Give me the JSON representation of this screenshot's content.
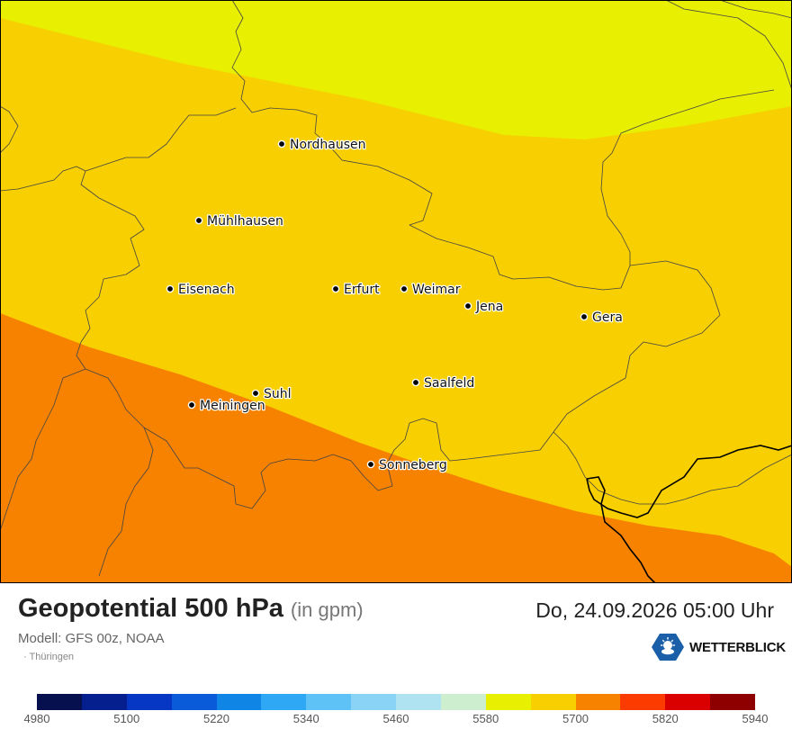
{
  "map": {
    "cities": [
      {
        "name": "Nordhausen"
      },
      {
        "name": "Mühlhausen"
      },
      {
        "name": "Eisenach"
      },
      {
        "name": "Erfurt"
      },
      {
        "name": "Weimar"
      },
      {
        "name": "Jena"
      },
      {
        "name": "Gera"
      },
      {
        "name": "Suhl"
      },
      {
        "name": "Meiningen"
      },
      {
        "name": "Saalfeld"
      },
      {
        "name": "Sonneberg"
      }
    ],
    "field_colors": {
      "band_5580": "#e8ef00",
      "band_5640": "#f8cf00",
      "band_5700": "#f78200"
    }
  },
  "header": {
    "title": "Geopotential 500 hPa",
    "unit": "(in gpm)",
    "datetime": "Do, 24.09.2026 05:00 Uhr",
    "model": "Modell: GFS 00z, NOAA",
    "region": "· Thüringen",
    "logo_text": "WETTERBLICK"
  },
  "legend": {
    "colors": [
      "#07104e",
      "#061f8f",
      "#0537c4",
      "#0a5bd9",
      "#0f86e6",
      "#2ea8f4",
      "#5ec2f7",
      "#8ad3f7",
      "#b0e3f2",
      "#cdeecf",
      "#e8ef00",
      "#f8cf00",
      "#f78200",
      "#fb3b00",
      "#db0000",
      "#8e0000"
    ],
    "ticks": [
      "4980",
      "5100",
      "5220",
      "5340",
      "5460",
      "5580",
      "5700",
      "5820",
      "5940"
    ]
  }
}
